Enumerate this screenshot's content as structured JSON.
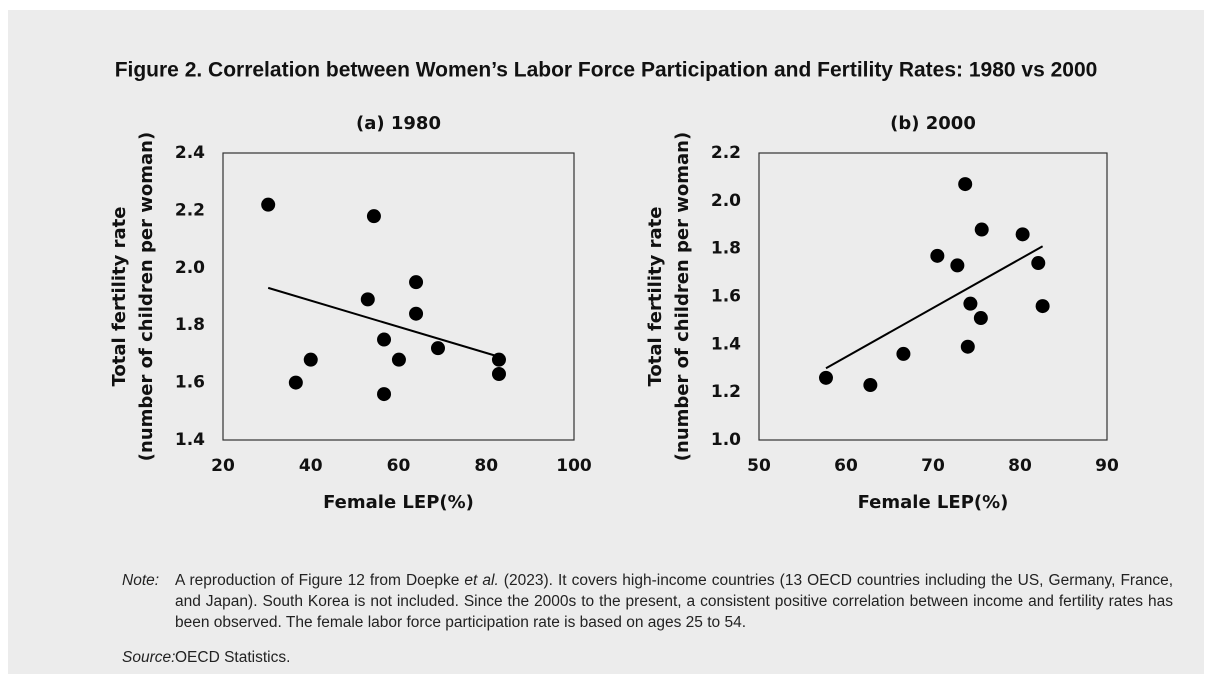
{
  "figure_title": "Figure 2. Correlation between Women’s Labor Force Participation and Fertility Rates: 1980 vs 2000",
  "chart_data": [
    {
      "type": "scatter",
      "title": "(a) 1980",
      "xlabel": "Female LEP(%)",
      "ylabel": [
        "Total fertility rate",
        "(number of children per woman)"
      ],
      "x": [
        30.3,
        54.4,
        36.6,
        40.0,
        53.0,
        64.0,
        64.0,
        56.7,
        60.1,
        56.7,
        69.0,
        82.9,
        82.9
      ],
      "values": [
        2.22,
        2.18,
        1.6,
        1.68,
        1.89,
        1.95,
        1.84,
        1.75,
        1.68,
        1.56,
        1.72,
        1.68,
        1.63
      ],
      "color": "#000000",
      "trendline": {
        "x": [
          30.3,
          82.9
        ],
        "values": [
          1.93,
          1.69
        ]
      },
      "xlim": [
        20,
        100
      ],
      "xticks": [
        20,
        40,
        60,
        80,
        100
      ],
      "ylim": [
        1.4,
        2.4
      ],
      "yticks": [
        1.4,
        1.6,
        1.8,
        {
          "value": 2,
          "label": "2.0"
        },
        2.2,
        2.4
      ],
      "grid": false
    },
    {
      "type": "scatter",
      "title": "(b) 2000",
      "xlabel": "Female LEP(%)",
      "ylabel": [
        "Total fertility rate",
        "(number of children per woman)"
      ],
      "x": [
        57.7,
        62.8,
        66.6,
        70.5,
        72.8,
        73.7,
        74.3,
        74.0,
        75.5,
        75.6,
        80.3,
        82.1,
        82.6
      ],
      "values": [
        1.26,
        1.23,
        1.36,
        1.77,
        1.73,
        2.07,
        1.57,
        1.39,
        1.51,
        1.88,
        1.86,
        1.74,
        1.56
      ],
      "color": "#000000",
      "trendline": {
        "x": [
          57.7,
          82.6
        ],
        "values": [
          1.3,
          1.81
        ]
      },
      "xlim": [
        50,
        90
      ],
      "xticks": [
        50,
        60,
        70,
        80,
        90
      ],
      "ylim": [
        1.0,
        2.2
      ],
      "yticks": [
        {
          "value": 1,
          "label": "1.0"
        },
        1.2,
        1.4,
        1.6,
        1.8,
        {
          "value": 2,
          "label": "2.0"
        },
        2.2
      ],
      "grid": false
    }
  ],
  "note": {
    "label": "Note:",
    "parts": [
      "A reproduction of Figure 12 from Doepke ",
      "et al.",
      " (2023). It covers high-income countries (13 OECD countries including the US, Germany, France, and Japan). South Korea is not included. Since the 2000s to the present, a consistent positive correlation between income and fertility rates has been observed. The female labor force participation rate is based on ages 25 to 54."
    ]
  },
  "source": {
    "label": "Source:",
    "text": "OECD Statistics."
  }
}
